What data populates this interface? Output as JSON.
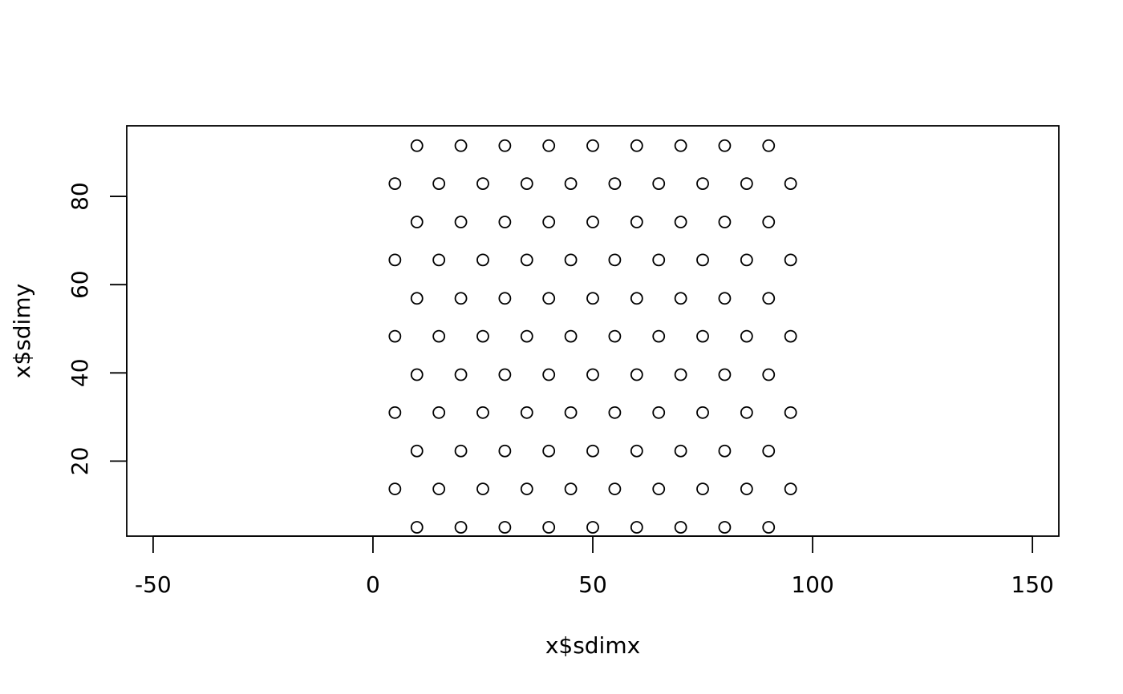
{
  "chart_data": {
    "type": "scatter",
    "title": "",
    "xlabel": "x$sdimx",
    "ylabel": "x$sdimy",
    "xlim": [
      -56,
      156
    ],
    "ylim": [
      3,
      96
    ],
    "grid": false,
    "legend": "none",
    "x_ticks": [
      -50,
      0,
      50,
      100,
      150
    ],
    "x_tick_labels": [
      "-50",
      "0",
      "50",
      "100",
      "150"
    ],
    "y_ticks": [
      20,
      40,
      60,
      80
    ],
    "y_tick_labels": [
      "20",
      "40",
      "60",
      "80"
    ],
    "marker": "open-circle",
    "series": [
      {
        "points": [
          [
            10,
            5
          ],
          [
            20,
            5
          ],
          [
            30,
            5
          ],
          [
            40,
            5
          ],
          [
            50,
            5
          ],
          [
            60,
            5
          ],
          [
            70,
            5
          ],
          [
            80,
            5
          ],
          [
            90,
            5
          ],
          [
            5,
            13.7
          ],
          [
            15,
            13.7
          ],
          [
            25,
            13.7
          ],
          [
            35,
            13.7
          ],
          [
            45,
            13.7
          ],
          [
            55,
            13.7
          ],
          [
            65,
            13.7
          ],
          [
            75,
            13.7
          ],
          [
            85,
            13.7
          ],
          [
            95,
            13.7
          ],
          [
            10,
            22.3
          ],
          [
            20,
            22.3
          ],
          [
            30,
            22.3
          ],
          [
            40,
            22.3
          ],
          [
            50,
            22.3
          ],
          [
            60,
            22.3
          ],
          [
            70,
            22.3
          ],
          [
            80,
            22.3
          ],
          [
            90,
            22.3
          ],
          [
            5,
            31
          ],
          [
            15,
            31
          ],
          [
            25,
            31
          ],
          [
            35,
            31
          ],
          [
            45,
            31
          ],
          [
            55,
            31
          ],
          [
            65,
            31
          ],
          [
            75,
            31
          ],
          [
            85,
            31
          ],
          [
            95,
            31
          ],
          [
            10,
            39.6
          ],
          [
            20,
            39.6
          ],
          [
            30,
            39.6
          ],
          [
            40,
            39.6
          ],
          [
            50,
            39.6
          ],
          [
            60,
            39.6
          ],
          [
            70,
            39.6
          ],
          [
            80,
            39.6
          ],
          [
            90,
            39.6
          ],
          [
            5,
            48.3
          ],
          [
            15,
            48.3
          ],
          [
            25,
            48.3
          ],
          [
            35,
            48.3
          ],
          [
            45,
            48.3
          ],
          [
            55,
            48.3
          ],
          [
            65,
            48.3
          ],
          [
            75,
            48.3
          ],
          [
            85,
            48.3
          ],
          [
            95,
            48.3
          ],
          [
            10,
            56.9
          ],
          [
            20,
            56.9
          ],
          [
            30,
            56.9
          ],
          [
            40,
            56.9
          ],
          [
            50,
            56.9
          ],
          [
            60,
            56.9
          ],
          [
            70,
            56.9
          ],
          [
            80,
            56.9
          ],
          [
            90,
            56.9
          ],
          [
            5,
            65.6
          ],
          [
            15,
            65.6
          ],
          [
            25,
            65.6
          ],
          [
            35,
            65.6
          ],
          [
            45,
            65.6
          ],
          [
            55,
            65.6
          ],
          [
            65,
            65.6
          ],
          [
            75,
            65.6
          ],
          [
            85,
            65.6
          ],
          [
            95,
            65.6
          ],
          [
            10,
            74.2
          ],
          [
            20,
            74.2
          ],
          [
            30,
            74.2
          ],
          [
            40,
            74.2
          ],
          [
            50,
            74.2
          ],
          [
            60,
            74.2
          ],
          [
            70,
            74.2
          ],
          [
            80,
            74.2
          ],
          [
            90,
            74.2
          ],
          [
            5,
            82.9
          ],
          [
            15,
            82.9
          ],
          [
            25,
            82.9
          ],
          [
            35,
            82.9
          ],
          [
            45,
            82.9
          ],
          [
            55,
            82.9
          ],
          [
            65,
            82.9
          ],
          [
            75,
            82.9
          ],
          [
            85,
            82.9
          ],
          [
            95,
            82.9
          ],
          [
            10,
            91.5
          ],
          [
            20,
            91.5
          ],
          [
            30,
            91.5
          ],
          [
            40,
            91.5
          ],
          [
            50,
            91.5
          ],
          [
            60,
            91.5
          ],
          [
            70,
            91.5
          ],
          [
            80,
            91.5
          ],
          [
            90,
            91.5
          ]
        ]
      }
    ]
  }
}
